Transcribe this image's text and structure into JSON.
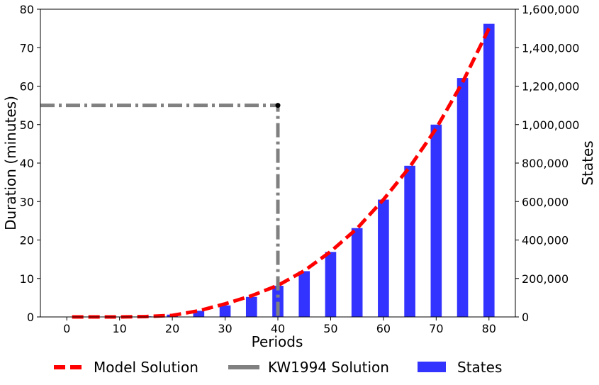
{
  "chart_data": {
    "type": "bar+line",
    "title": "",
    "xlabel": "Periods",
    "ylabel_left": "Duration (minutes)",
    "ylabel_right": "States",
    "xlim": [
      -5,
      85
    ],
    "ylim_left": [
      0,
      80
    ],
    "ylim_right": [
      0,
      1600000
    ],
    "x_ticks": [
      0,
      10,
      20,
      30,
      40,
      50,
      60,
      70,
      80
    ],
    "y_left_ticks": [
      0,
      10,
      20,
      30,
      40,
      50,
      60,
      70,
      80
    ],
    "y_right_ticks": [
      "0",
      "200,000",
      "400,000",
      "600,000",
      "800,000",
      "1,000,000",
      "1,200,000",
      "1,400,000",
      "1,600,000"
    ],
    "y_right_tick_values": [
      0,
      200000,
      400000,
      600000,
      800000,
      1000000,
      1200000,
      1400000,
      1600000
    ],
    "grid": false,
    "legend_placement": "bottom",
    "bars": {
      "name": "States",
      "axis": "right",
      "color": "#0000ff",
      "opacity": 0.8,
      "x": [
        5,
        10,
        15,
        20,
        25,
        30,
        35,
        40,
        45,
        50,
        55,
        60,
        65,
        70,
        75,
        80
      ],
      "values": [
        0,
        0,
        3000,
        12000,
        32000,
        60000,
        104000,
        162000,
        238000,
        338000,
        462000,
        610000,
        786000,
        1000000,
        1242000,
        1524000
      ]
    },
    "series": [
      {
        "name": "Model Solution",
        "axis": "left",
        "style": "dashed",
        "color": "#ff0000",
        "x": [
          1,
          5,
          10,
          15,
          20,
          25,
          30,
          35,
          40,
          45,
          50,
          55,
          60,
          65,
          70,
          75,
          80
        ],
        "values": [
          0,
          0,
          0,
          0.1,
          0.4,
          1.6,
          3.4,
          5.5,
          8.2,
          12.0,
          17.0,
          23.0,
          30.5,
          39.0,
          49.0,
          61.0,
          75.0
        ]
      },
      {
        "name": "KW1994 Solution",
        "axis": "left",
        "style": "dashdot",
        "color": "#808080",
        "x": [
          -5,
          40,
          40
        ],
        "values": [
          55,
          55,
          0
        ],
        "marker_point": [
          40,
          55
        ]
      }
    ]
  }
}
